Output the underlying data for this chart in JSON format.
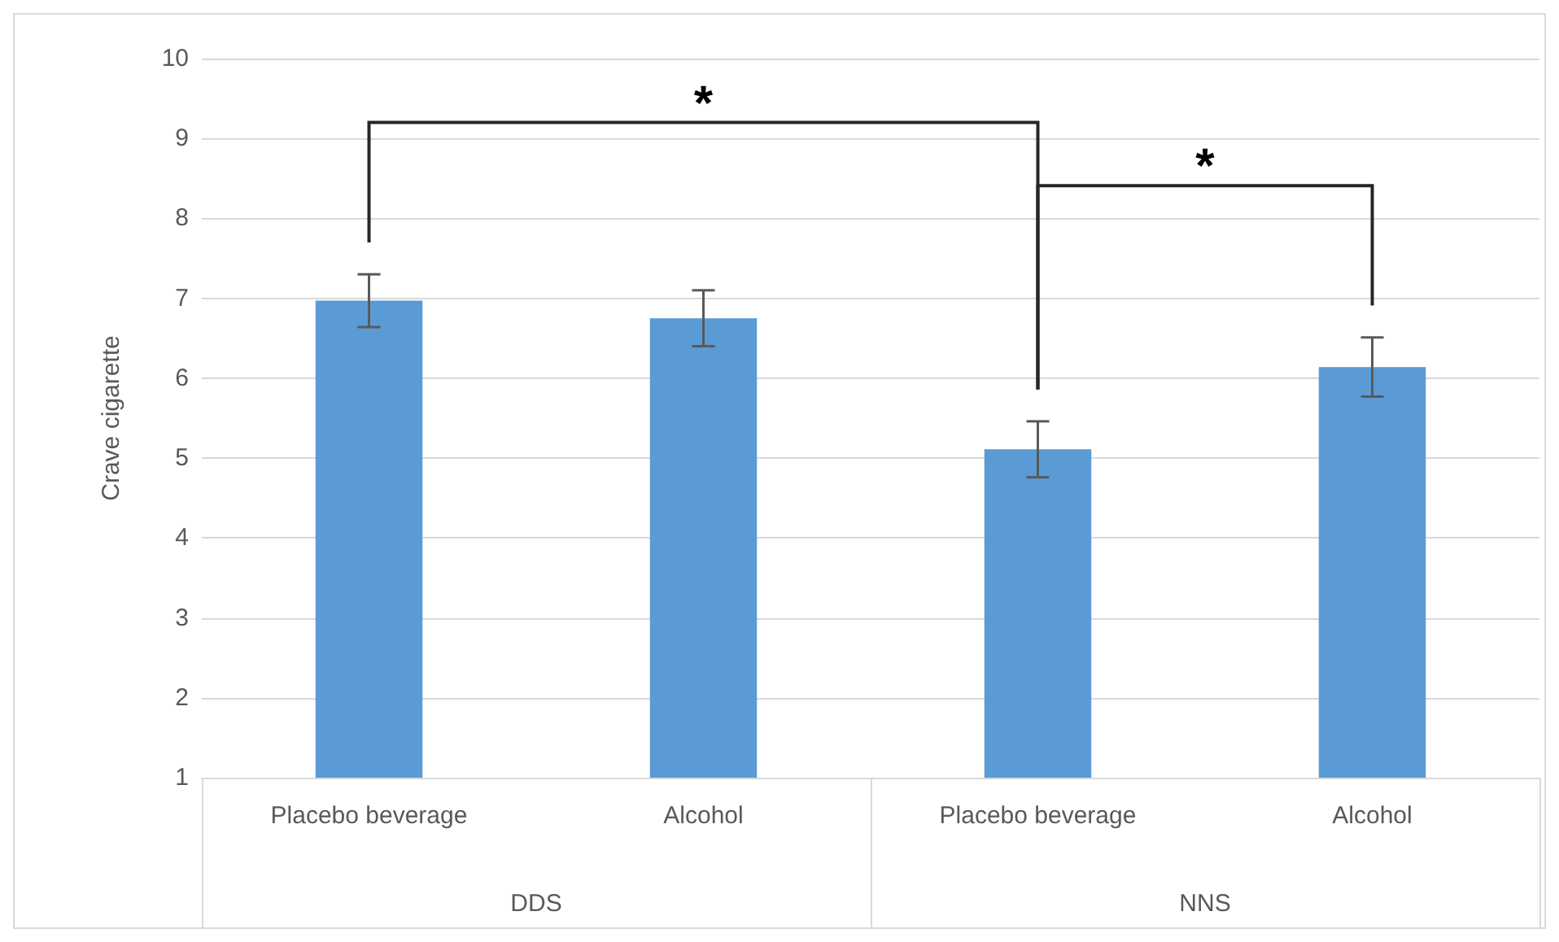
{
  "chart_data": {
    "type": "bar",
    "ylabel": "Crave cigarette",
    "categories": [
      "Placebo beverage",
      "Alcohol",
      "Placebo beverage",
      "Alcohol"
    ],
    "values": [
      6.97,
      6.75,
      5.11,
      6.14
    ],
    "errors": [
      0.33,
      0.35,
      0.35,
      0.37
    ],
    "color": "#5b9bd5",
    "ylim": [
      1,
      10
    ],
    "yticks": [
      1,
      2,
      3,
      4,
      5,
      6,
      7,
      8,
      9,
      10
    ],
    "grid": "y",
    "annotations": [
      "*",
      "*",
      "DDS",
      "NNS"
    ]
  }
}
